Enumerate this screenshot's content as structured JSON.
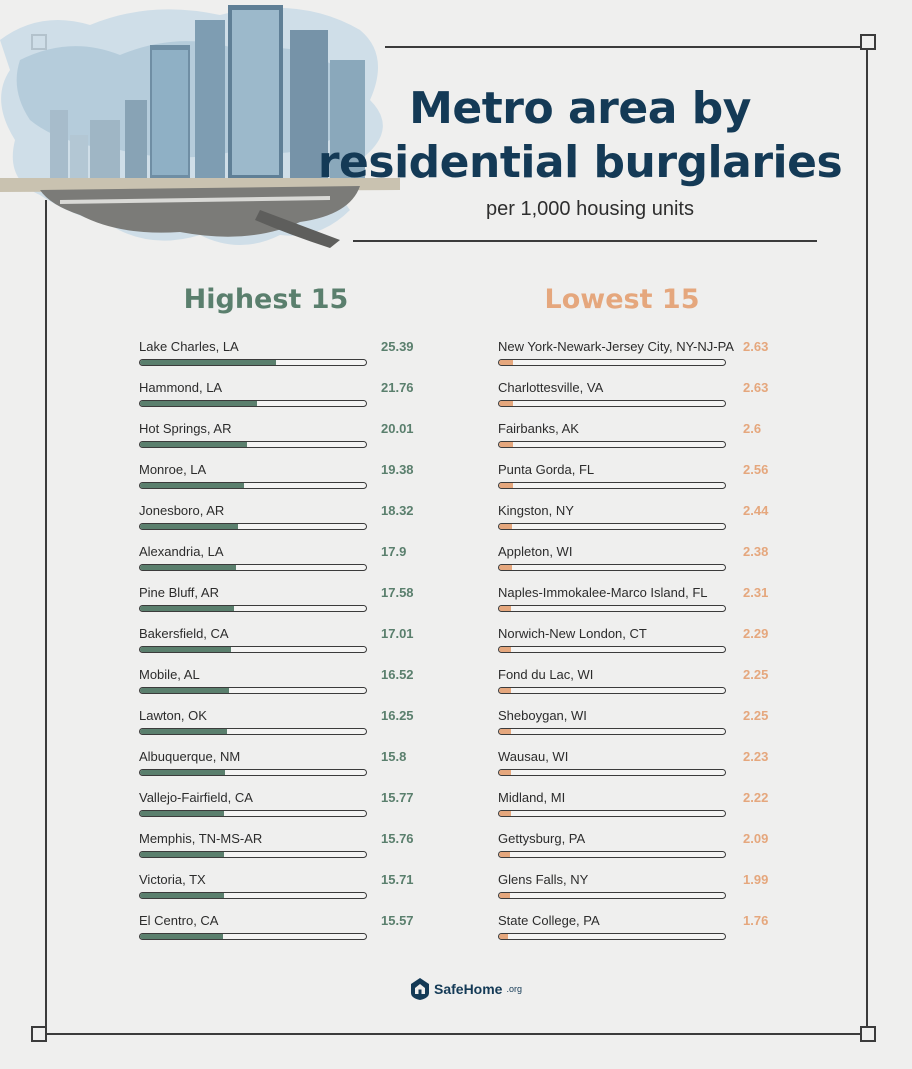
{
  "title_line1": "Metro area by",
  "title_line2": "residential burglaries",
  "subtitle": "per 1,000 housing units",
  "colors": {
    "navy": "#143a56",
    "highest": "#5a7f6d",
    "lowest": "#e5a77d"
  },
  "chart_data": [
    {
      "type": "bar",
      "title": "Highest 15",
      "categories": [
        "Lake Charles, LA",
        "Hammond, LA",
        "Hot Springs, AR",
        "Monroe, LA",
        "Jonesboro, AR",
        "Alexandria, LA",
        "Pine Bluff, AR",
        "Bakersfield, CA",
        "Mobile, AL",
        "Lawton, OK",
        "Albuquerque, NM",
        "Vallejo-Fairfield, CA",
        "Memphis, TN-MS-AR",
        "Victoria, TX",
        "El Centro, CA"
      ],
      "values": [
        "25.39",
        "21.76",
        "20.01",
        "19.38",
        "18.32",
        "17.9",
        "17.58",
        "17.01",
        "16.52",
        "16.25",
        "15.8",
        "15.77",
        "15.76",
        "15.71",
        "15.57"
      ],
      "xlim": [
        0,
        42
      ]
    },
    {
      "type": "bar",
      "title": "Lowest 15",
      "categories": [
        "New York-Newark-Jersey City, NY-NJ-PA",
        "Charlottesville, VA",
        "Fairbanks, AK",
        "Punta Gorda, FL",
        "Kingston, NY",
        "Appleton, WI",
        "Naples-Immokalee-Marco Island, FL",
        "Norwich-New London, CT",
        "Fond du Lac, WI",
        "Sheboygan, WI",
        "Wausau, WI",
        "Midland, MI",
        "Gettysburg, PA",
        "Glens Falls, NY",
        "State College, PA"
      ],
      "values": [
        "2.63",
        "2.63",
        "2.6",
        "2.56",
        "2.44",
        "2.38",
        "2.31",
        "2.29",
        "2.25",
        "2.25",
        "2.23",
        "2.22",
        "2.09",
        "1.99",
        "1.76"
      ],
      "xlim": [
        0,
        42
      ]
    }
  ],
  "logo": {
    "brand": "SafeHome",
    "tld": ".org"
  }
}
